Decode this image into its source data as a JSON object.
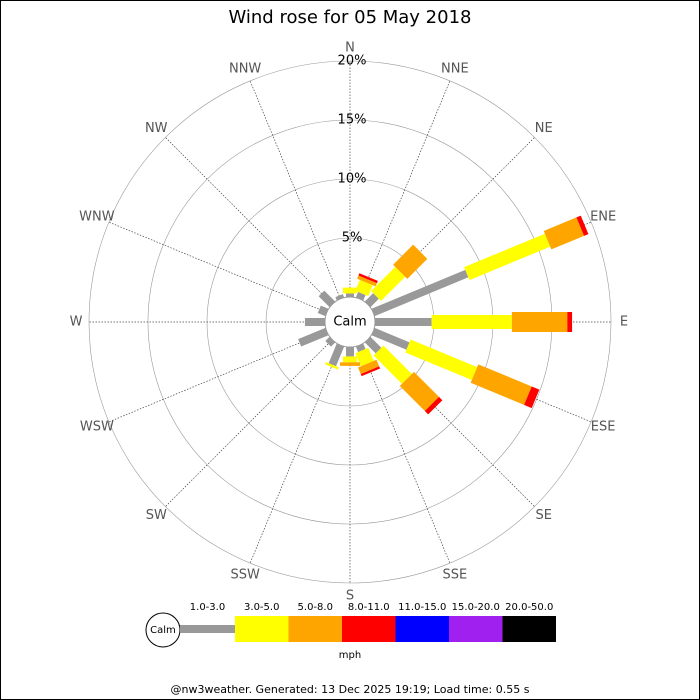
{
  "chart_data": {
    "type": "windrose",
    "title": "Wind rose for 05 May 2018",
    "directions": [
      "N",
      "NNE",
      "NE",
      "ENE",
      "E",
      "ESE",
      "SE",
      "SSE",
      "S",
      "SSW",
      "SW",
      "WSW",
      "W",
      "WNW",
      "NW",
      "NNW"
    ],
    "calm_label": "Calm",
    "units": "mph",
    "rlim": [
      0,
      20
    ],
    "rticks": [
      {
        "value": 5,
        "label": "5%"
      },
      {
        "value": 10,
        "label": "10%"
      },
      {
        "value": 15,
        "label": "15%"
      },
      {
        "value": 20,
        "label": "20%"
      }
    ],
    "series": [
      {
        "name": "1.0-3.0",
        "color": "#999999",
        "values": [
          0.3,
          0.5,
          1.0,
          8.6,
          4.8,
          3.2,
          1.3,
          0.5,
          0.8,
          1.8,
          0.5,
          2.5,
          1.7,
          0.7,
          1.3,
          0.3
        ]
      },
      {
        "name": "3.0-5.0",
        "color": "#ffff00",
        "values": [
          0.5,
          1.0,
          2.9,
          7.4,
          6.8,
          6.1,
          3.4,
          1.2,
          0.5,
          0.2,
          0,
          0,
          0,
          0,
          0,
          0
        ]
      },
      {
        "name": "5.0-8.0",
        "color": "#ffa500",
        "values": [
          0,
          0.3,
          2.4,
          3.0,
          4.7,
          4.9,
          3.0,
          0.6,
          0.3,
          0,
          0,
          0,
          0,
          0,
          0,
          0
        ]
      },
      {
        "name": "8.0-11.0",
        "color": "#ff0000",
        "values": [
          0,
          0.2,
          0,
          0.4,
          0.4,
          0.7,
          0.4,
          0.2,
          0,
          0,
          0,
          0,
          0,
          0,
          0,
          0
        ]
      },
      {
        "name": "11.0-15.0",
        "color": "#0000ff",
        "values": [
          0,
          0,
          0,
          0,
          0,
          0,
          0,
          0,
          0,
          0,
          0,
          0,
          0,
          0,
          0,
          0
        ]
      },
      {
        "name": "15.0-20.0",
        "color": "#a020f0",
        "values": [
          0,
          0,
          0,
          0,
          0,
          0,
          0,
          0,
          0,
          0,
          0,
          0,
          0,
          0,
          0,
          0
        ]
      },
      {
        "name": "20.0-50.0",
        "color": "#000000",
        "values": [
          0,
          0,
          0,
          0,
          0,
          0,
          0,
          0,
          0,
          0,
          0,
          0,
          0,
          0,
          0,
          0
        ]
      }
    ],
    "footer": "@nw3weather. Generated: 13 Dec 2025 19:19; Load time: 0.55 s"
  }
}
